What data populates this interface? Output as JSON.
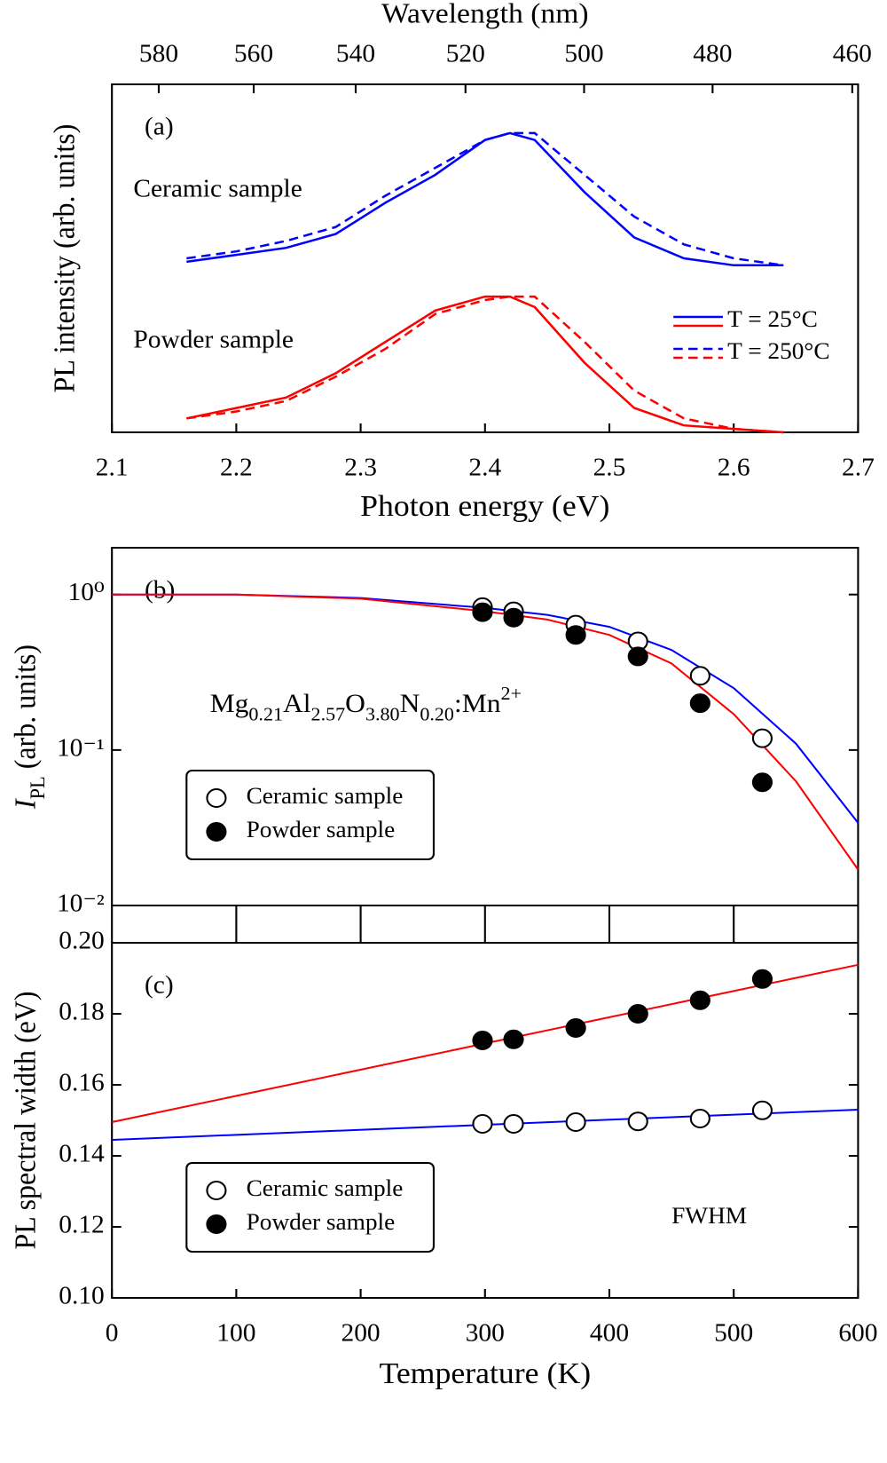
{
  "chart_data": [
    {
      "type": "line",
      "annotation": "(a)",
      "xlabel": "Photon energy (eV)",
      "x2label": "Wavelength (nm)",
      "ylabel": "PL intensity (arb. units)",
      "xlim": [
        2.1,
        2.7
      ],
      "xticks": [
        2.1,
        2.2,
        2.3,
        2.4,
        2.5,
        2.6,
        2.7
      ],
      "x2ticks": [
        580,
        560,
        540,
        520,
        500,
        480,
        460
      ],
      "ylim": [
        0,
        1
      ],
      "x": [
        2.16,
        2.2,
        2.24,
        2.28,
        2.32,
        2.36,
        2.4,
        2.42,
        2.44,
        2.48,
        2.52,
        2.56,
        2.6,
        2.64
      ],
      "series": [
        {
          "color": "#0000ff",
          "dash": false,
          "values": [
            0.49,
            0.51,
            0.53,
            0.57,
            0.66,
            0.74,
            0.84,
            0.86,
            0.84,
            0.69,
            0.56,
            0.5,
            0.48,
            0.48
          ]
        },
        {
          "color": "#0000ff",
          "dash": true,
          "values": [
            0.5,
            0.52,
            0.55,
            0.59,
            0.68,
            0.76,
            0.84,
            0.86,
            0.86,
            0.74,
            0.62,
            0.54,
            0.5,
            0.48
          ]
        },
        {
          "color": "#ff0000",
          "dash": false,
          "values": [
            0.04,
            0.07,
            0.1,
            0.17,
            0.26,
            0.35,
            0.39,
            0.39,
            0.36,
            0.2,
            0.07,
            0.02,
            0.01,
            0
          ]
        },
        {
          "color": "#ff0000",
          "dash": true,
          "values": [
            0.04,
            0.06,
            0.09,
            0.16,
            0.24,
            0.34,
            0.38,
            0.39,
            0.39,
            0.26,
            0.12,
            0.04,
            0.01,
            0
          ]
        }
      ],
      "annotations": [
        "Ceramic sample",
        "Powder sample"
      ],
      "legend": {
        "position": "right",
        "entries": [
          "T = 25°C",
          "T = 250°C"
        ]
      }
    },
    {
      "type": "scatter",
      "annotation": "(b)",
      "formula": [
        {
          "text": "Mg"
        },
        {
          "text": "0.21",
          "sub": true
        },
        {
          "text": "Al"
        },
        {
          "text": "2.57",
          "sub": true
        },
        {
          "text": "O"
        },
        {
          "text": "3.80",
          "sub": true
        },
        {
          "text": "N"
        },
        {
          "text": "0.20",
          "sub": true
        },
        {
          "text": ":Mn"
        },
        {
          "text": "2+",
          "sup": true
        }
      ],
      "ylabel": [
        {
          "text": "I",
          "italic": true
        },
        {
          "text": "PL",
          "sub": true
        },
        {
          "text": " (arb. units)"
        }
      ],
      "xlim": [
        0,
        600
      ],
      "xticks": [
        0,
        100,
        200,
        300,
        400,
        500,
        600
      ],
      "ylim": [
        0.01,
        2
      ],
      "log_y": true,
      "yticks": [
        {
          "value": 1,
          "label": "10⁰"
        },
        {
          "value": 0.1,
          "label": "10⁻¹"
        },
        {
          "value": 0.01,
          "label": "10⁻²"
        }
      ],
      "x": [
        298,
        323,
        373,
        423,
        473,
        523
      ],
      "series": [
        {
          "name": "Ceramic sample",
          "filled": false,
          "values": [
            0.83,
            0.78,
            0.64,
            0.5,
            0.3,
            0.119
          ]
        },
        {
          "name": "Powder sample",
          "filled": true,
          "values": [
            0.77,
            0.71,
            0.55,
            0.4,
            0.2,
            0.062
          ]
        }
      ],
      "fits": {
        "x": [
          0,
          100,
          200,
          300,
          350,
          400,
          450,
          500,
          550,
          600
        ],
        "series": [
          {
            "color": "#0000ff",
            "values": [
              1,
              1,
              0.95,
              0.82,
              0.74,
              0.62,
              0.44,
              0.25,
              0.11,
              0.034
            ]
          },
          {
            "color": "#ff0000",
            "values": [
              1,
              1,
              0.94,
              0.78,
              0.69,
              0.55,
              0.36,
              0.17,
              0.063,
              0.017
            ]
          }
        ]
      },
      "legend": "lower left"
    },
    {
      "type": "scatter",
      "annotation": "(c)",
      "note": "FWHM",
      "xlabel": "Temperature (K)",
      "ylabel": [
        {
          "text": "PL spectral width (eV)"
        }
      ],
      "xlim": [
        0,
        600
      ],
      "xticks": [
        0,
        100,
        200,
        300,
        400,
        500,
        600
      ],
      "ylim": [
        0.1,
        0.2
      ],
      "yticks": [
        {
          "value": 0.1,
          "label": "0.10"
        },
        {
          "value": 0.12,
          "label": "0.12"
        },
        {
          "value": 0.14,
          "label": "0.14"
        },
        {
          "value": 0.16,
          "label": "0.16"
        },
        {
          "value": 0.18,
          "label": "0.18"
        },
        {
          "value": 0.2,
          "label": "0.20"
        }
      ],
      "x": [
        298,
        323,
        373,
        423,
        473,
        523
      ],
      "series": [
        {
          "name": "Ceramic sample",
          "filled": false,
          "values": [
            0.149,
            0.149,
            0.1495,
            0.1497,
            0.1505,
            0.1528
          ]
        },
        {
          "name": "Powder sample",
          "filled": true,
          "values": [
            0.1725,
            0.1728,
            0.176,
            0.18,
            0.1838,
            0.1898
          ]
        }
      ],
      "fits": {
        "x": [
          0,
          600
        ],
        "series": [
          {
            "color": "#0000ff",
            "values": [
              0.1445,
              0.153
            ]
          },
          {
            "color": "#ff0000",
            "values": [
              0.1495,
              0.1938
            ]
          }
        ]
      },
      "legend": "lower left"
    }
  ]
}
